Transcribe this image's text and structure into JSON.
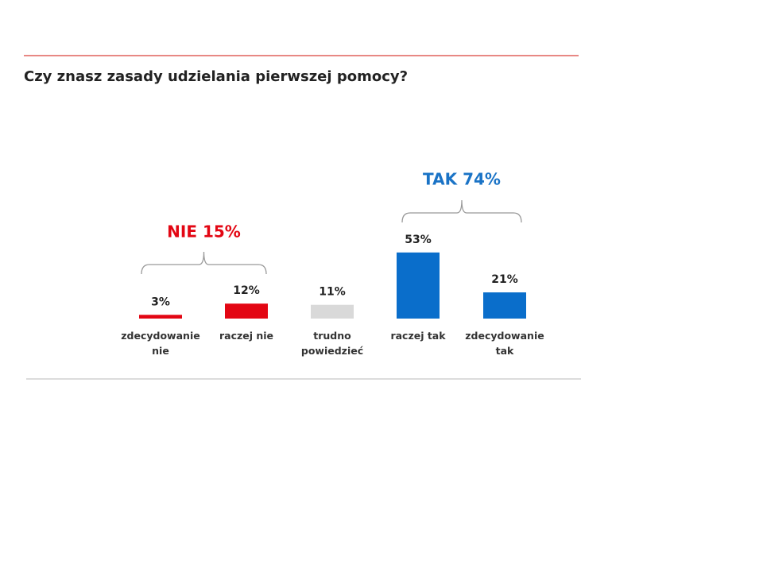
{
  "chart_data": {
    "type": "bar",
    "title": "Czy znasz zasady udzielania pierwszej pomocy?",
    "categories": [
      "zdecydowanie nie",
      "raczej nie",
      "trudno powiedzieć",
      "raczej tak",
      "zdecydowanie tak"
    ],
    "values": [
      3,
      12,
      11,
      53,
      21
    ],
    "value_labels": [
      "3%",
      "12%",
      "11%",
      "53%",
      "21%"
    ],
    "colors": [
      "#e30613",
      "#e30613",
      "#d9d9d9",
      "#0a6ecb",
      "#0a6ecb"
    ],
    "annotations": [
      {
        "text": "NIE 15%",
        "color": "#e30613"
      },
      {
        "text": "TAK 74%",
        "color": "#1a73c6"
      }
    ]
  }
}
